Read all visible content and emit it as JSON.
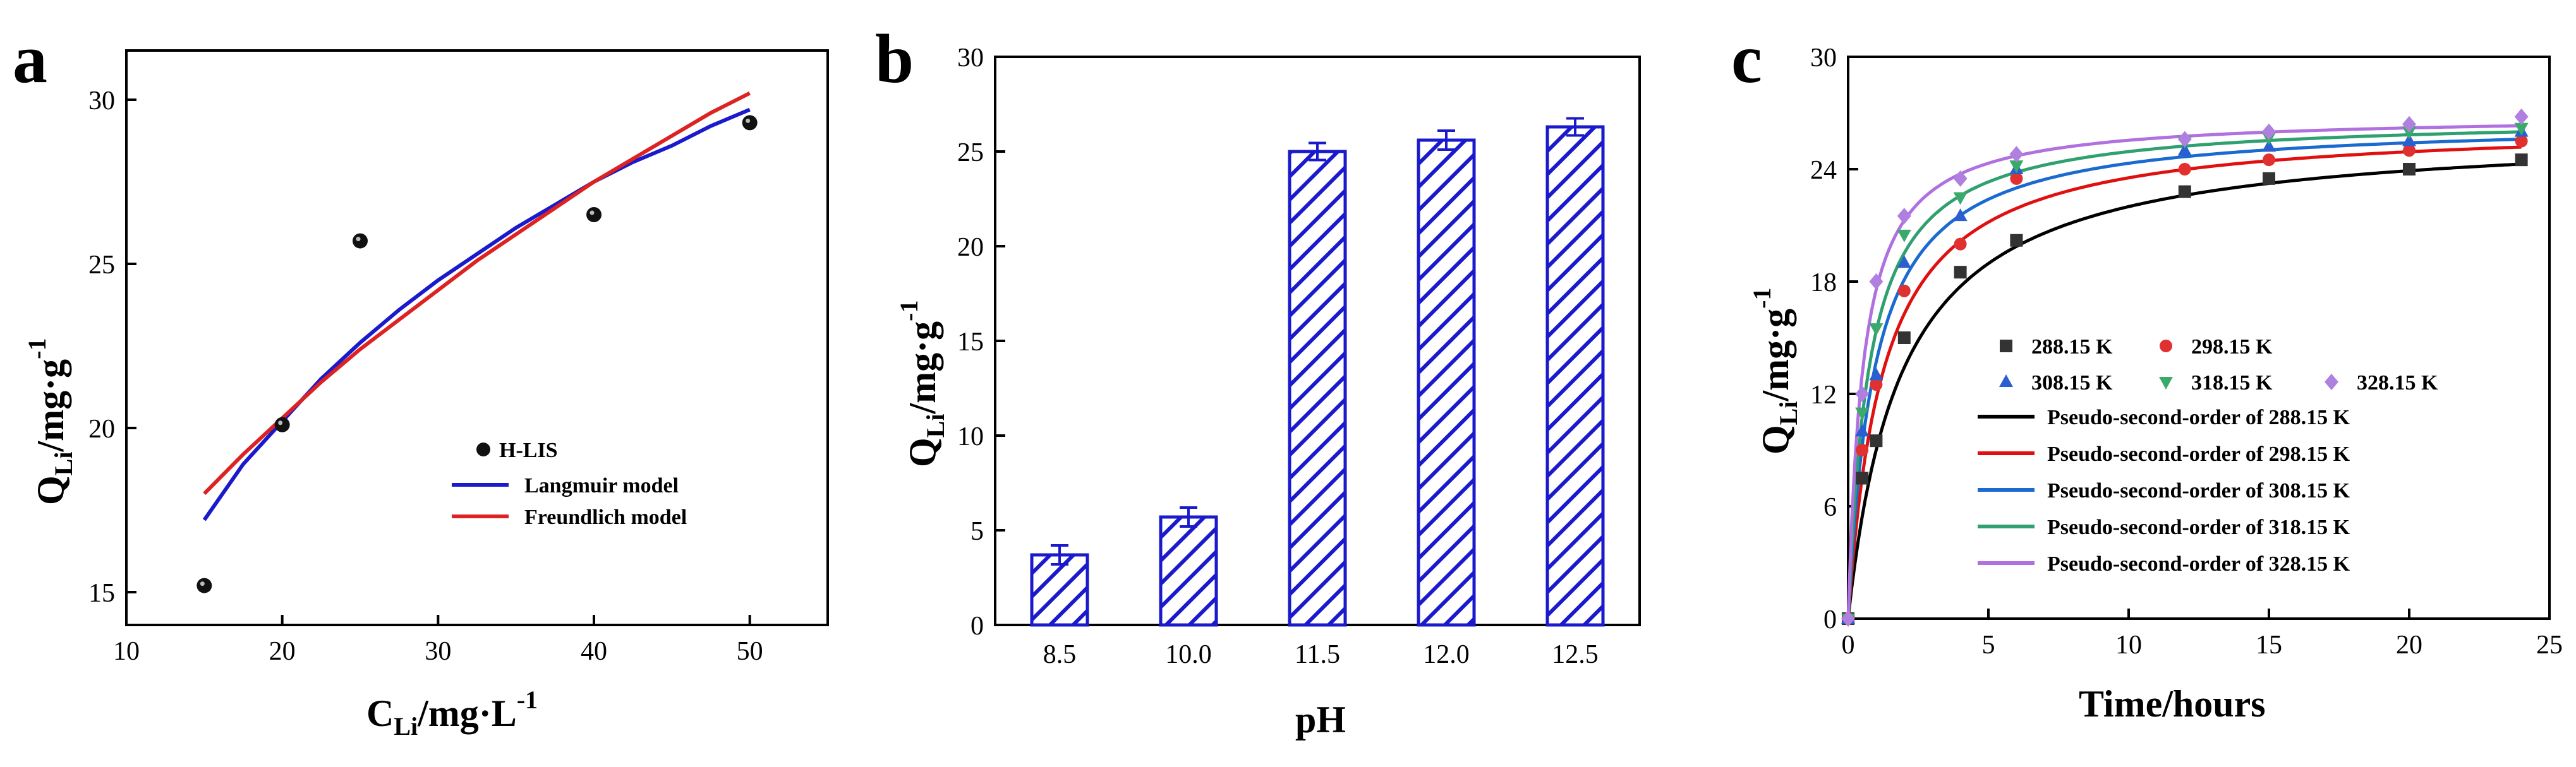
{
  "chart_data": [
    {
      "panel_label": "a",
      "type": "scatter",
      "xlabel_main": "C",
      "xlabel_sub": "Li",
      "xlabel_rest": "/mg·L",
      "xlabel_sup": "-1",
      "ylabel_main": "Q",
      "ylabel_sub": "Li",
      "ylabel_rest": "/mg·g",
      "ylabel_sup": "-1",
      "xlim": [
        10,
        55
      ],
      "ylim": [
        14,
        31.5
      ],
      "xticks": [
        10,
        20,
        30,
        40,
        50
      ],
      "yticks": [
        15,
        20,
        25,
        30
      ],
      "series": [
        {
          "name": "H-LIS",
          "kind": "points",
          "color": "#111111",
          "x": [
            15,
            20,
            25,
            40,
            50
          ],
          "y": [
            15.2,
            20.1,
            25.7,
            26.5,
            29.3
          ]
        },
        {
          "name": "Langmuir model",
          "kind": "line",
          "color": "#1a1acc",
          "x": [
            15,
            17.5,
            20,
            22.5,
            25,
            27.5,
            30,
            32.5,
            35,
            37.5,
            40,
            42.5,
            45,
            47.5,
            50
          ],
          "y": [
            17.2,
            18.9,
            20.2,
            21.5,
            22.6,
            23.6,
            24.5,
            25.3,
            26.1,
            26.8,
            27.5,
            28.1,
            28.6,
            29.2,
            29.7
          ]
        },
        {
          "name": "Freundlich model",
          "kind": "line",
          "color": "#dd2222",
          "x": [
            15,
            17.5,
            20,
            22.5,
            25,
            27.5,
            30,
            32.5,
            35,
            37.5,
            40,
            42.5,
            45,
            47.5,
            50
          ],
          "y": [
            18.0,
            19.2,
            20.3,
            21.4,
            22.4,
            23.3,
            24.2,
            25.1,
            25.9,
            26.7,
            27.5,
            28.2,
            28.9,
            29.6,
            30.2
          ]
        }
      ],
      "legend_position": "lower-right"
    },
    {
      "panel_label": "b",
      "type": "bar",
      "xlabel": "pH",
      "ylabel_main": "Q",
      "ylabel_sub": "Li",
      "ylabel_rest": "/mg·g",
      "ylabel_sup": "-1",
      "categories": [
        "8.5",
        "10.0",
        "11.5",
        "12.0",
        "12.5"
      ],
      "values": [
        3.7,
        5.7,
        25.0,
        25.6,
        26.3
      ],
      "errors": [
        0.5,
        0.5,
        0.45,
        0.5,
        0.45
      ],
      "ylim": [
        0,
        30
      ],
      "yticks": [
        0,
        5,
        10,
        15,
        20,
        25,
        30
      ],
      "bar_color": "#1a1acc",
      "fill": "diagonal-hatch"
    },
    {
      "panel_label": "c",
      "type": "scatter",
      "xlabel": "Time/hours",
      "ylabel_main": "Q",
      "ylabel_sub": "Li",
      "ylabel_rest": "/mg·g",
      "ylabel_sup": "-1",
      "xlim": [
        0,
        25
      ],
      "ylim": [
        0,
        30
      ],
      "xticks": [
        0,
        5,
        10,
        15,
        20,
        25
      ],
      "yticks": [
        0,
        6,
        12,
        18,
        24,
        30
      ],
      "x": [
        0,
        0.5,
        1,
        2,
        4,
        6,
        12,
        15,
        20,
        24
      ],
      "series": [
        {
          "name": "288.15 K",
          "marker": "square",
          "color": "#333333",
          "y": [
            0,
            7.5,
            9.5,
            15.0,
            18.5,
            20.2,
            22.8,
            23.5,
            24.0,
            24.5
          ]
        },
        {
          "name": "298.15 K",
          "marker": "circle",
          "color": "#e03030",
          "y": [
            0,
            9.0,
            12.5,
            17.5,
            20.0,
            23.5,
            24.0,
            24.5,
            25.0,
            25.5
          ]
        },
        {
          "name": "308.15 K",
          "marker": "triangle-up",
          "color": "#2a5fd0",
          "y": [
            0,
            10.0,
            13.0,
            19.0,
            21.5,
            24.0,
            25.0,
            25.2,
            25.5,
            26.0
          ]
        },
        {
          "name": "318.15 K",
          "marker": "triangle-down",
          "color": "#3aaa6a",
          "y": [
            0,
            11.0,
            15.5,
            20.5,
            22.5,
            24.2,
            25.5,
            25.7,
            26.0,
            26.2
          ]
        },
        {
          "name": "328.15 K",
          "marker": "diamond",
          "color": "#b080e0",
          "y": [
            0,
            12.0,
            18.0,
            21.5,
            23.5,
            24.8,
            25.6,
            26.0,
            26.4,
            26.8
          ]
        }
      ],
      "fits": [
        {
          "name": "Pseudo-second-order of 288.15 K",
          "color": "#000000",
          "qe": 26.2,
          "k": 0.02
        },
        {
          "name": "Pseudo-second-order of 298.15 K",
          "color": "#e01010",
          "qe": 26.5,
          "k": 0.03
        },
        {
          "name": "Pseudo-second-order of 308.15 K",
          "color": "#1a6ad0",
          "qe": 26.6,
          "k": 0.04
        },
        {
          "name": "Pseudo-second-order of 318.15 K",
          "color": "#2fa070",
          "qe": 26.8,
          "k": 0.05
        },
        {
          "name": "Pseudo-second-order of 328.15 K",
          "color": "#b070e0",
          "qe": 26.9,
          "k": 0.07
        }
      ],
      "legend_position": "center"
    }
  ]
}
